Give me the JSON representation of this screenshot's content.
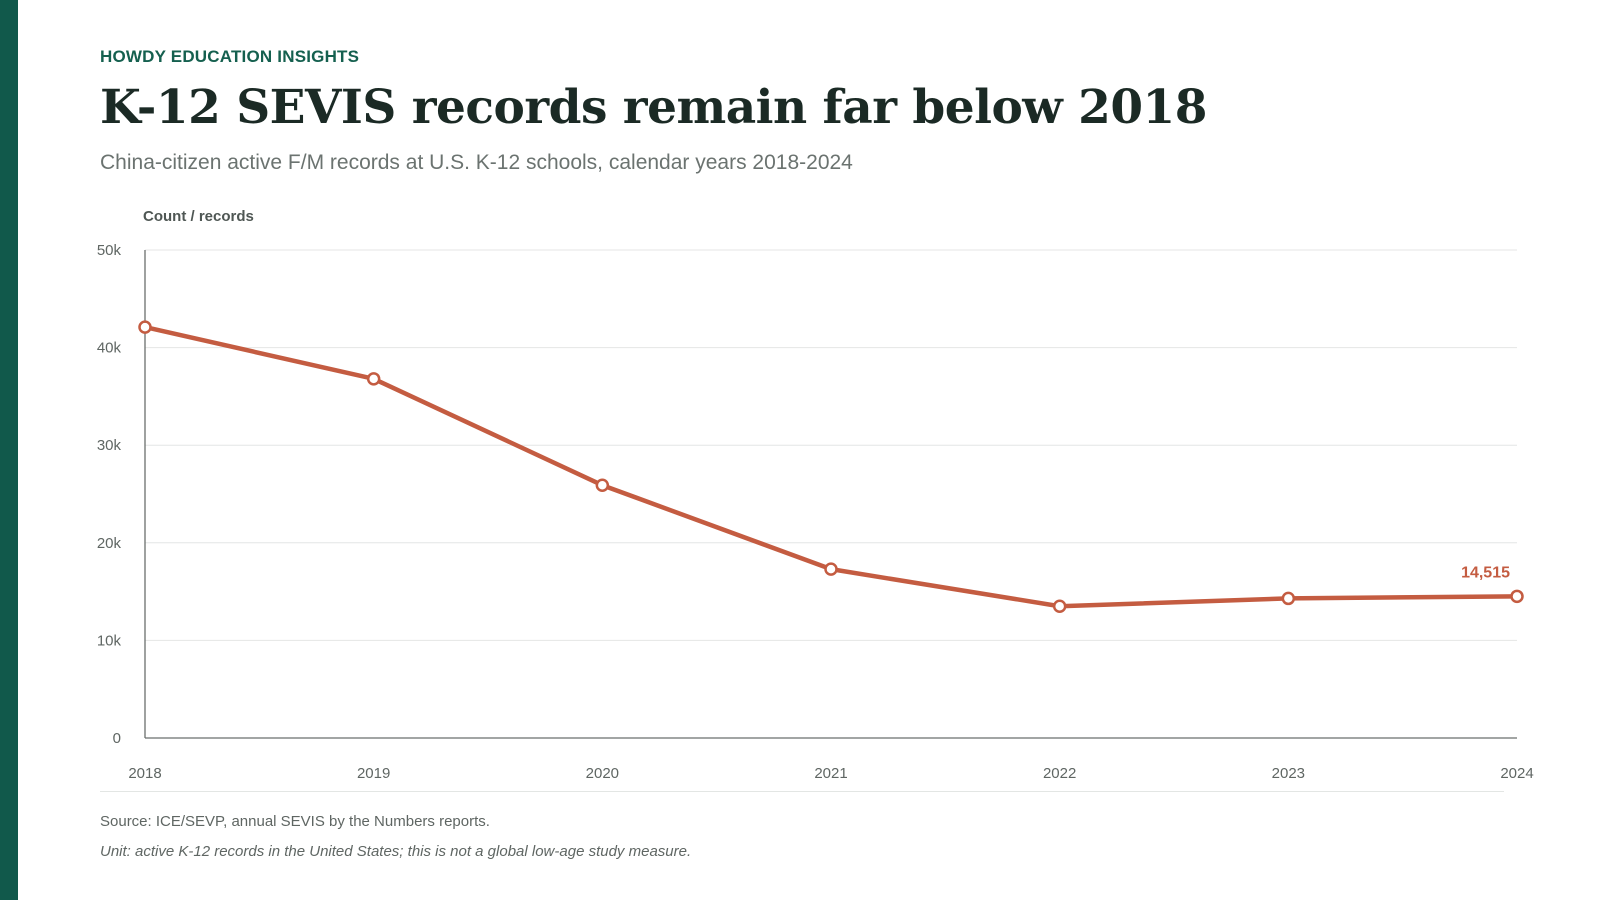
{
  "brand": "HOWDY EDUCATION INSIGHTS",
  "title": "K-12 SEVIS records remain far below 2018",
  "subtitle": "China-citizen active F/M records at U.S. K-12 schools, calendar years 2018-2024",
  "footer": {
    "source": "Source: ICE/SEVP, annual SEVIS by the Numbers reports.",
    "note": "Unit: active K-12 records in the United States; this is not a global low-age study measure."
  },
  "colors": {
    "accent": "#11594b",
    "series": "#c45c41"
  },
  "chart_data": {
    "type": "line",
    "title": "K-12 SEVIS records remain far below 2018",
    "ylabel": "Count / records",
    "xlabel": "",
    "categories": [
      "2018",
      "2019",
      "2020",
      "2021",
      "2022",
      "2023",
      "2024"
    ],
    "series": [
      {
        "values": [
          42100,
          36800,
          25900,
          17300,
          13500,
          14300,
          14515
        ]
      }
    ],
    "ylim": [
      0,
      50000
    ],
    "yticks": [
      0,
      10000,
      20000,
      30000,
      40000,
      50000
    ],
    "ytick_labels": [
      "0",
      "10k",
      "20k",
      "30k",
      "40k",
      "50k"
    ],
    "grid": true,
    "annotation": {
      "index": 6,
      "text": "14,515"
    }
  }
}
